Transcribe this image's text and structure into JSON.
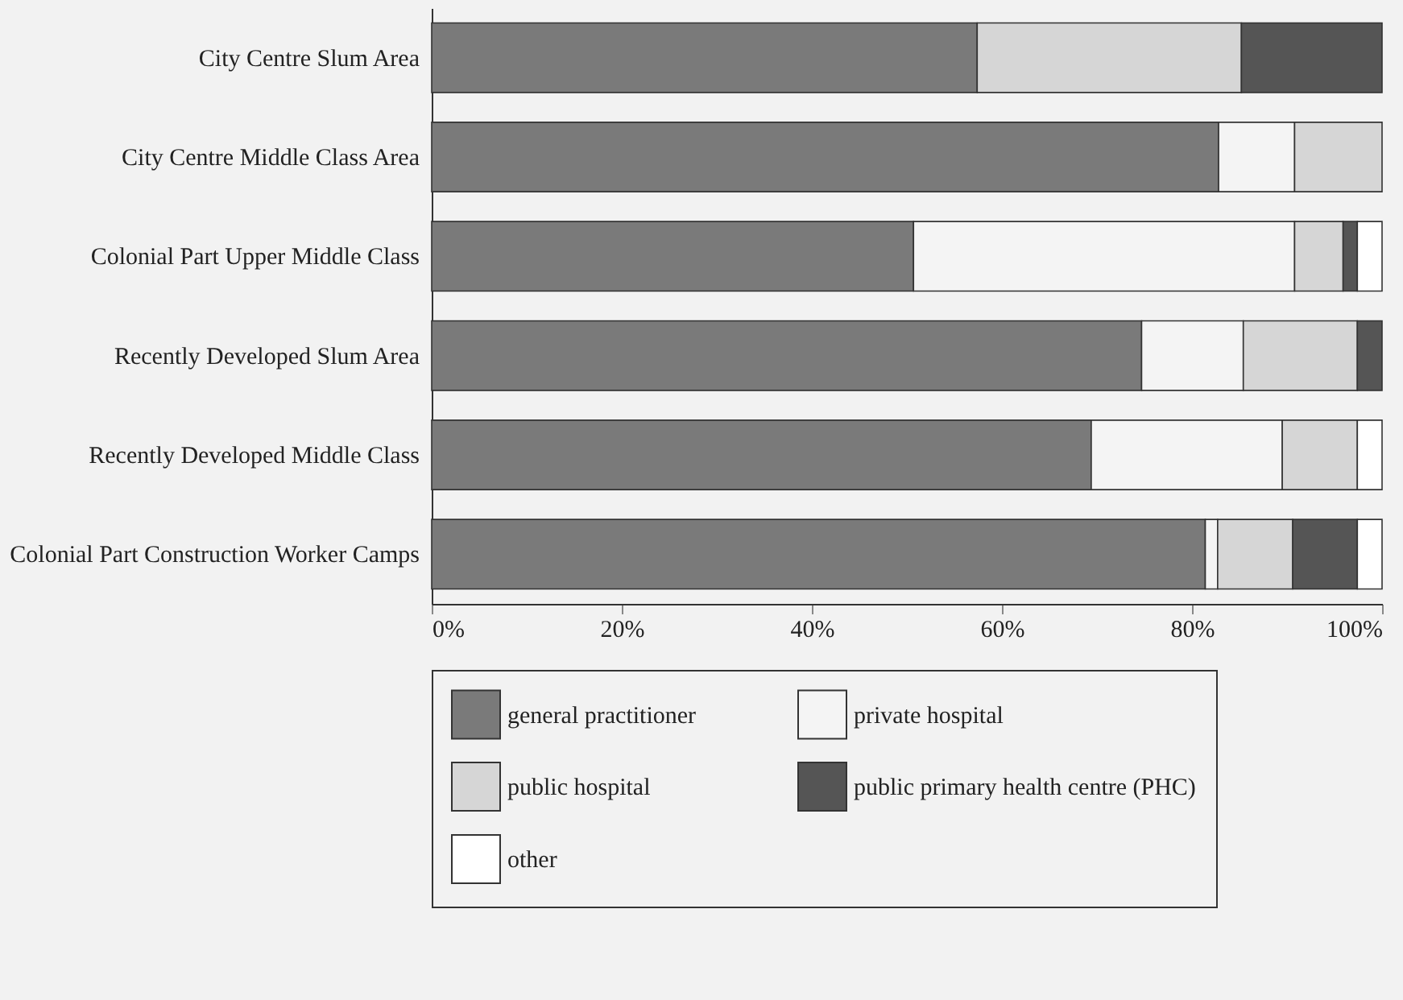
{
  "chart_data": {
    "type": "bar",
    "orientation": "horizontal",
    "stacked": true,
    "categories": [
      "City Centre Slum Area",
      "City Centre Middle Class Area",
      "Colonial Part Upper Middle Class",
      "Recently Developed Slum Area",
      "Recently Developed Middle Class",
      "Colonial Part Construction Worker Camps"
    ],
    "series": [
      {
        "name": "general practitioner",
        "color": "#7a7a7a",
        "values": [
          57.4,
          82.8,
          50.7,
          74.7,
          69.4,
          81.4
        ]
      },
      {
        "name": "private hospital",
        "color": "#f4f4f4",
        "values": [
          0,
          8.0,
          40.1,
          10.7,
          20.1,
          1.3
        ]
      },
      {
        "name": "public hospital",
        "color": "#d6d6d6",
        "values": [
          27.8,
          9.2,
          5.1,
          12.0,
          7.9,
          7.9
        ]
      },
      {
        "name": "public primary health centre (PHC)",
        "color": "#555555",
        "values": [
          14.8,
          0,
          1.5,
          2.6,
          0,
          6.8
        ]
      },
      {
        "name": "other",
        "color": "#ffffff",
        "values": [
          0,
          0,
          2.6,
          0,
          2.6,
          2.6
        ]
      }
    ],
    "xlim": [
      0,
      100
    ],
    "xticks": [
      {
        "value": 0,
        "label": "0%"
      },
      {
        "value": 20,
        "label": "20%"
      },
      {
        "value": 40,
        "label": "40%"
      },
      {
        "value": 60,
        "label": "60%"
      },
      {
        "value": 80,
        "label": "80%"
      },
      {
        "value": 100,
        "label": "100%"
      }
    ],
    "grid": false,
    "legend": "bottom"
  }
}
